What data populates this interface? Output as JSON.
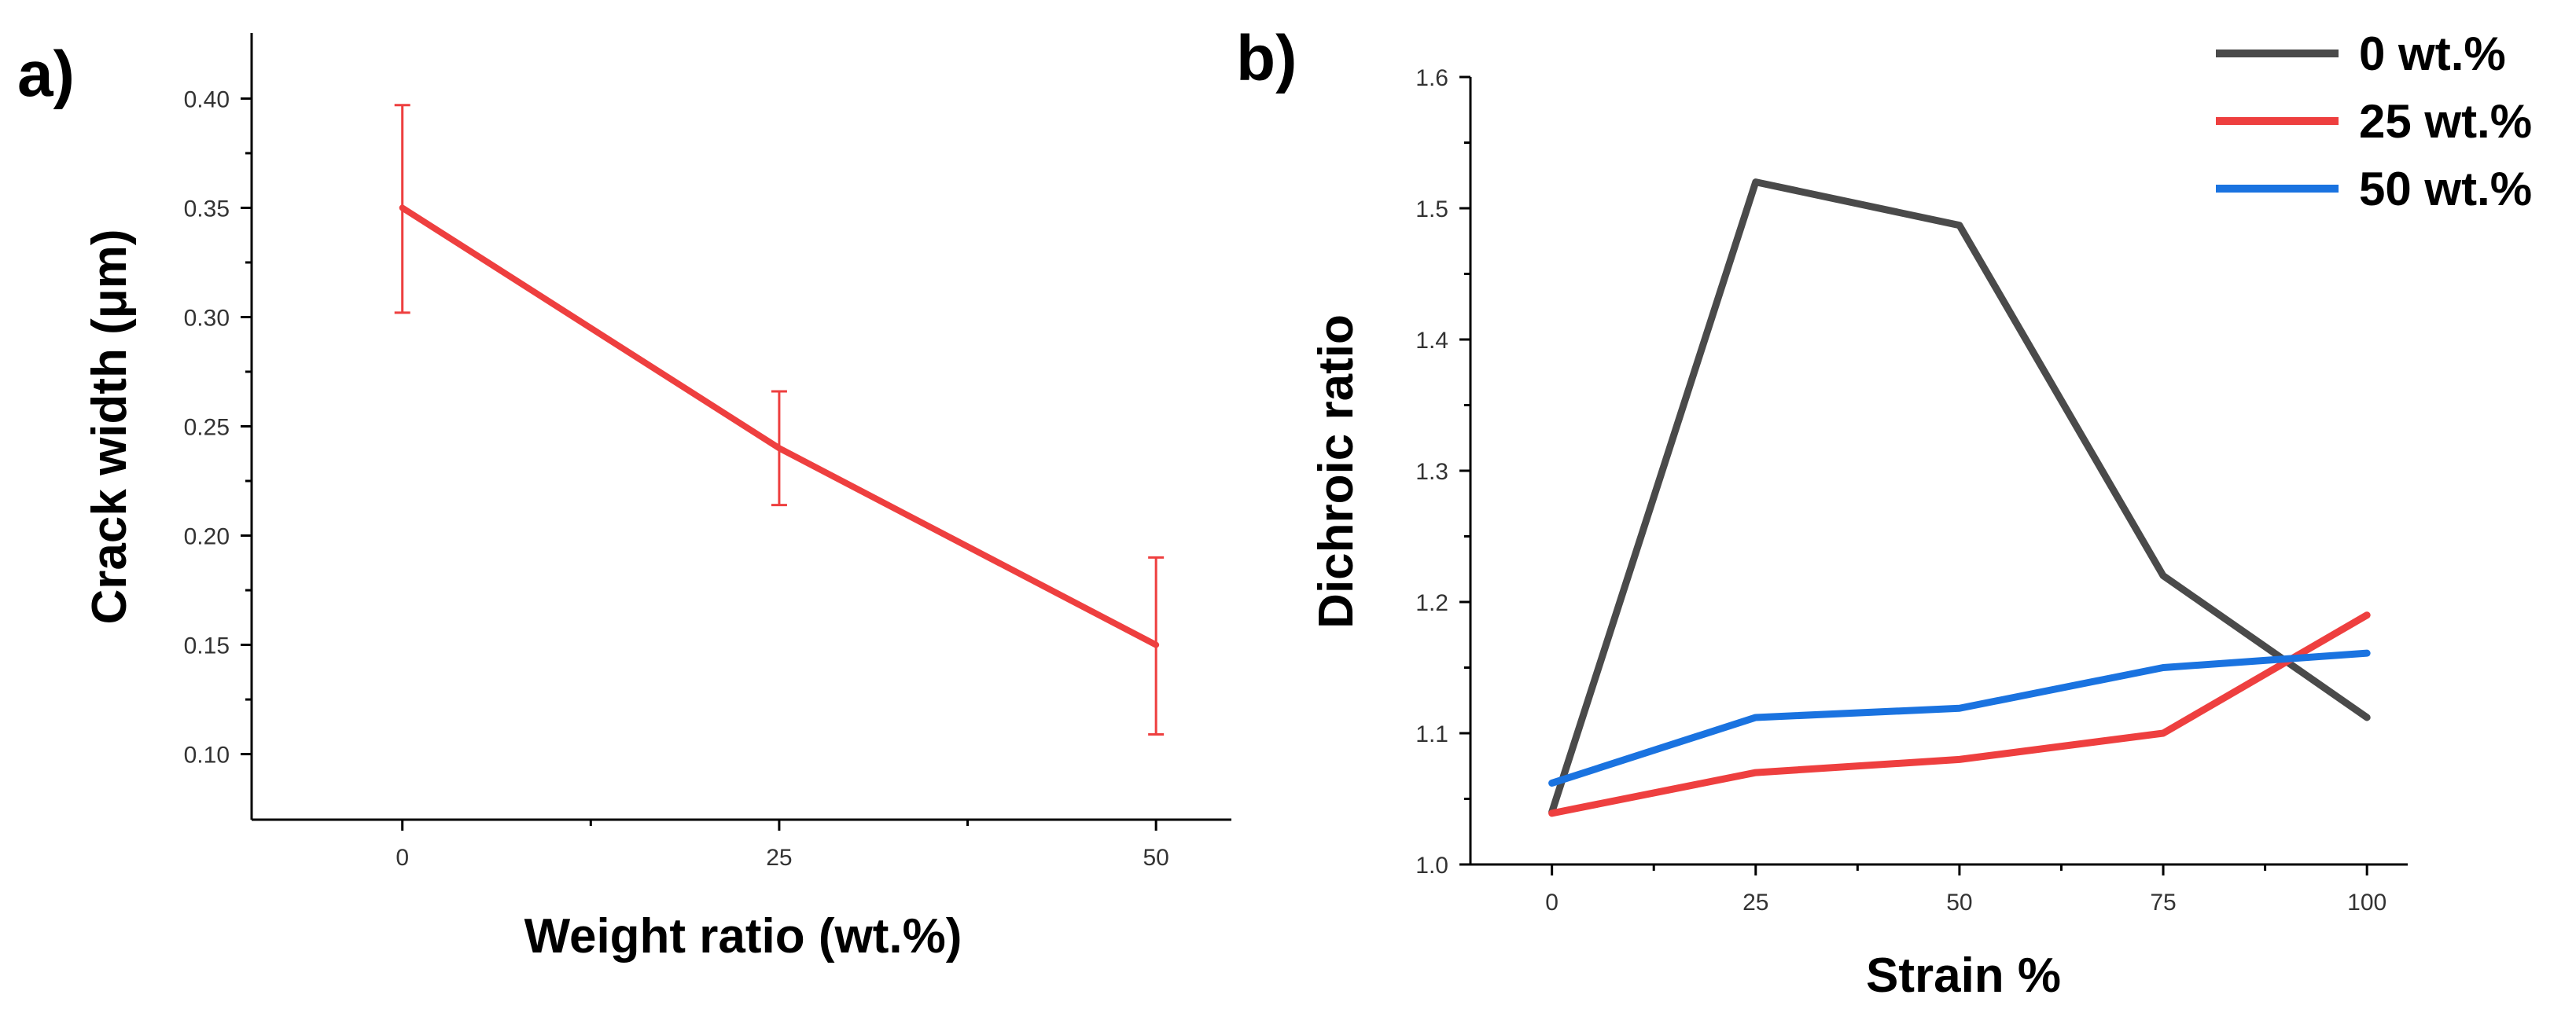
{
  "panels": [
    {
      "label": "a)",
      "chart_data": {
        "type": "line",
        "title": "",
        "xlabel": "Weight ratio (wt.%)",
        "ylabel": "Crack width (μm)",
        "xlim": [
          -10,
          55
        ],
        "ylim": [
          0.07,
          0.43
        ],
        "xticks": [
          0,
          25,
          50
        ],
        "xtick_labels": [
          "0",
          "25",
          "50"
        ],
        "yticks": [
          0.1,
          0.15,
          0.2,
          0.25,
          0.3,
          0.35,
          0.4
        ],
        "ytick_labels": [
          "0.10",
          "0.15",
          "0.20",
          "0.25",
          "0.30",
          "0.35",
          "0.40"
        ],
        "series": [
          {
            "name": "Crack width",
            "color": "#ee3f3f",
            "x": [
              0,
              25,
              50
            ],
            "y": [
              0.35,
              0.24,
              0.15
            ],
            "yerr_low": [
              0.302,
              0.214,
              0.109
            ],
            "yerr_high": [
              0.397,
              0.266,
              0.19
            ]
          }
        ]
      }
    },
    {
      "label": "b)",
      "chart_data": {
        "type": "line",
        "title": "",
        "xlabel": "Strain %",
        "ylabel": "Dichroic ratio",
        "xlim": [
          -10,
          105
        ],
        "ylim": [
          1.0,
          1.6
        ],
        "xticks": [
          0,
          25,
          50,
          75,
          100
        ],
        "xtick_labels": [
          "0",
          "25",
          "50",
          "75",
          "100"
        ],
        "yticks": [
          1.0,
          1.1,
          1.2,
          1.3,
          1.4,
          1.5,
          1.6
        ],
        "ytick_labels": [
          "1.0",
          "1.1",
          "1.2",
          "1.3",
          "1.4",
          "1.5",
          "1.6"
        ],
        "legend_position": "top-right",
        "series": [
          {
            "name": "0 wt.%",
            "color": "#4a4a4a",
            "x": [
              0,
              25,
              50,
              75,
              100
            ],
            "y": [
              1.04,
              1.52,
              1.487,
              1.22,
              1.112
            ]
          },
          {
            "name": "25 wt.%",
            "color": "#ee3f3f",
            "x": [
              0,
              25,
              50,
              75,
              100
            ],
            "y": [
              1.039,
              1.07,
              1.08,
              1.1,
              1.19
            ]
          },
          {
            "name": "50 wt.%",
            "color": "#1a73e0",
            "x": [
              0,
              25,
              50,
              75,
              100
            ],
            "y": [
              1.062,
              1.112,
              1.119,
              1.15,
              1.161
            ]
          }
        ]
      }
    }
  ]
}
